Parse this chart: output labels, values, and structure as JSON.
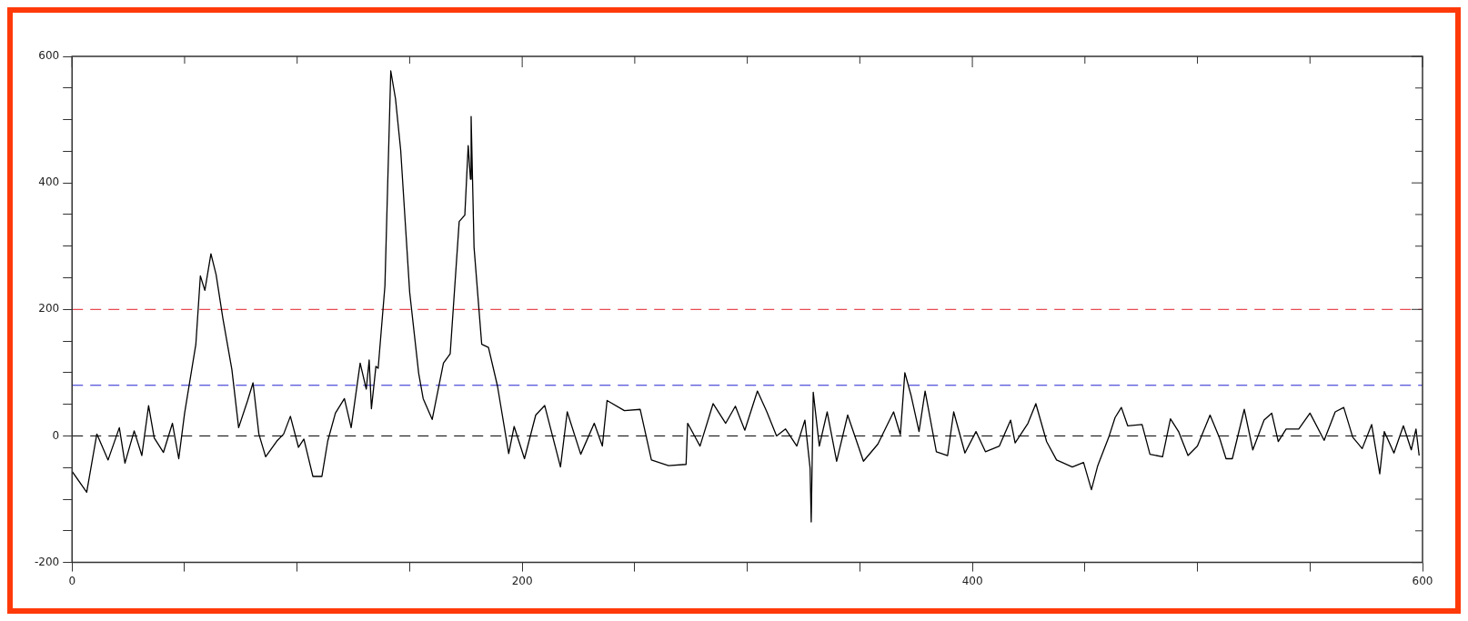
{
  "chart_data": {
    "type": "line",
    "color": "#000000",
    "marker": "none",
    "line_style": "solid",
    "grid": false,
    "legend": false,
    "x": [
      0,
      6.5,
      11,
      16,
      21,
      23.5,
      27.6,
      31,
      34,
      36.5,
      40.6,
      44.6,
      47.4,
      50,
      55,
      57,
      59,
      61.7,
      64,
      67,
      71,
      74,
      78,
      80.4,
      83,
      86,
      91,
      94,
      97,
      100.6,
      103,
      107,
      111,
      113.6,
      117,
      121,
      124,
      128,
      130.7,
      132,
      133,
      135,
      136,
      139,
      141.6,
      143.7,
      146,
      150,
      154,
      156,
      160,
      165,
      168,
      172,
      174.5,
      176,
      177,
      177.3,
      178.6,
      182,
      185,
      189,
      194,
      196.4,
      201,
      206,
      210,
      217,
      220,
      226,
      232,
      235.6,
      237.7,
      245.4,
      252.4,
      257.4,
      265,
      272.8,
      273.5,
      279,
      284.8,
      290.4,
      294.7,
      298.9,
      304.5,
      308.7,
      313,
      317,
      322,
      325.6,
      327.9,
      328.4,
      329.3,
      332,
      335.5,
      339.7,
      344.6,
      351.6,
      358,
      365,
      368,
      370,
      372.7,
      376.3,
      379,
      384,
      389,
      391.7,
      396.7,
      401.6,
      405.8,
      412,
      417,
      419,
      424.7,
      428.2,
      433,
      437.4,
      444.4,
      449.4,
      452.9,
      455.7,
      460.6,
      463.4,
      466.2,
      469,
      475.4,
      478.9,
      484.5,
      488,
      491.6,
      495.8,
      500,
      505.6,
      509.9,
      512.7,
      515.5,
      520.8,
      524.6,
      529.6,
      533,
      535.9,
      539.4,
      545,
      550,
      556.3,
      561.2,
      565,
      569,
      573.2,
      577.4,
      581,
      583,
      587.3,
      591.5,
      595,
      597.1,
      598.5
    ],
    "values": [
      -56,
      -89,
      3,
      -38,
      13,
      -43,
      8,
      -31,
      48,
      -3,
      -26,
      20,
      -36,
      36,
      145,
      253,
      230,
      288,
      255,
      186,
      105,
      13,
      56,
      84,
      3,
      -33,
      -8,
      3,
      31,
      -18,
      -5,
      -64,
      -64,
      -8,
      36,
      59,
      13,
      115,
      74,
      120,
      43,
      110,
      107,
      237,
      577,
      533,
      452,
      227,
      99,
      59,
      26,
      115,
      130,
      339,
      349,
      459,
      406,
      505,
      298,
      145,
      140,
      79,
      -28,
      15,
      -36,
      33,
      48,
      -49,
      38,
      -29,
      20,
      -16,
      56,
      40,
      42,
      -38,
      -47,
      -45,
      20,
      -16,
      51,
      20,
      47,
      9,
      71,
      38,
      0,
      11,
      -16,
      25,
      -51,
      -136,
      69,
      -16,
      38,
      -40,
      33,
      -40,
      -13,
      38,
      2,
      100,
      65,
      7,
      71,
      -25,
      -31,
      38,
      -27,
      7,
      -25,
      -16,
      25,
      -11,
      20,
      51,
      -9,
      -38,
      -49,
      -42,
      -85,
      -47,
      -2,
      29,
      45,
      16,
      18,
      -29,
      -33,
      27,
      7,
      -31,
      -16,
      33,
      -4,
      -36,
      -36,
      42,
      -22,
      25,
      36,
      -9,
      11,
      11,
      36,
      -7,
      38,
      45,
      -2,
      -20,
      18,
      -60,
      7,
      -27,
      16,
      -22,
      11,
      -31
    ],
    "xlim": [
      0,
      600
    ],
    "xticks": [
      0,
      {
        "value": 50,
        "label": null
      },
      {
        "value": 100,
        "label": null
      },
      {
        "value": 150,
        "label": null
      },
      200,
      {
        "value": 250,
        "label": null
      },
      {
        "value": 300,
        "label": null
      },
      {
        "value": 350,
        "label": null
      },
      400,
      {
        "value": 450,
        "label": null
      },
      {
        "value": 500,
        "label": null
      },
      {
        "value": 550,
        "label": null
      },
      600
    ],
    "ylim": [
      -200,
      600
    ],
    "yticks": [
      -200,
      {
        "value": -150,
        "label": null
      },
      {
        "value": -100,
        "label": null
      },
      {
        "value": -50,
        "label": null
      },
      0,
      {
        "value": 50,
        "label": null
      },
      {
        "value": 100,
        "label": null
      },
      {
        "value": 150,
        "label": null
      },
      200,
      {
        "value": 250,
        "label": null
      },
      {
        "value": 300,
        "label": null
      },
      {
        "value": 350,
        "label": null
      },
      400,
      {
        "value": 450,
        "label": null
      },
      {
        "value": 500,
        "label": null
      },
      {
        "value": 550,
        "label": null
      },
      600
    ],
    "ref_lines": [
      {
        "axis": "y",
        "value": 0,
        "color": "#000000",
        "line_style": "dashed"
      },
      {
        "axis": "y",
        "value": 200,
        "color": "#e0202a",
        "line_style": "dashed"
      },
      {
        "axis": "y",
        "value": 80,
        "color": "#2020d0",
        "line_style": "dashed"
      }
    ]
  }
}
